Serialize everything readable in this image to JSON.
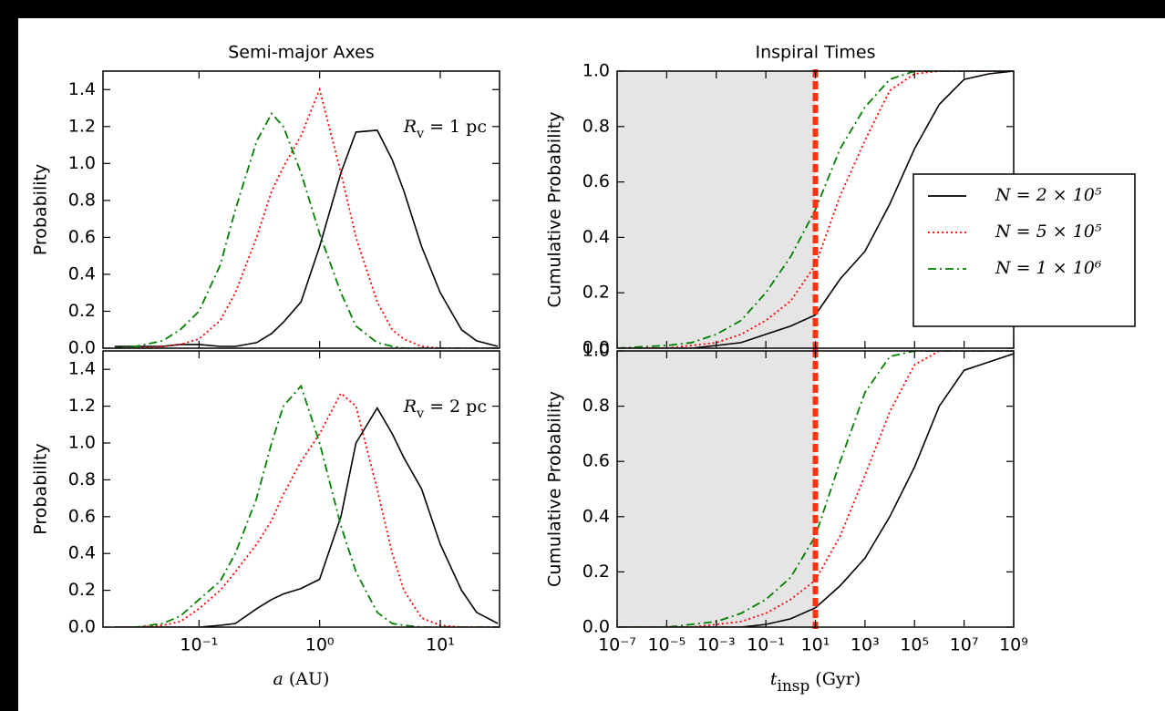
{
  "chart_data": [
    {
      "type": "line",
      "title": "Semi-major Axes",
      "ylabel": "Probability",
      "log_x": true,
      "annotation": {
        "symbol": "R",
        "subscript": "v",
        "text": "= 1 pc"
      },
      "x": [
        0.02,
        0.03,
        0.05,
        0.07,
        0.1,
        0.15,
        0.2,
        0.3,
        0.4,
        0.5,
        0.7,
        1,
        1.5,
        2,
        3,
        4,
        5,
        7,
        10,
        15,
        20,
        30
      ],
      "xlim": [
        0.016,
        31
      ],
      "xticks": [
        0.1,
        1,
        10
      ],
      "ylim": [
        0,
        1.5
      ],
      "yticks": [
        {
          "value": 0,
          "label": "0.0"
        },
        0.2,
        0.4,
        0.6,
        0.8,
        {
          "value": 1,
          "label": "1.0"
        },
        1.2,
        1.4
      ],
      "series": [
        {
          "color": "#000000",
          "dash": "solid",
          "values": [
            0.01,
            0.01,
            0.01,
            0.02,
            0.02,
            0.01,
            0.01,
            0.03,
            0.08,
            0.14,
            0.25,
            0.55,
            0.95,
            1.17,
            1.18,
            1.02,
            0.85,
            0.55,
            0.3,
            0.1,
            0.04,
            0.01
          ]
        },
        {
          "color": "#ff0000",
          "dash": "dotted",
          "values": [
            0,
            0,
            0.01,
            0.02,
            0.05,
            0.15,
            0.3,
            0.6,
            0.85,
            0.98,
            1.15,
            1.4,
            0.95,
            0.6,
            0.25,
            0.1,
            0.05,
            0.01,
            0,
            0,
            0,
            0
          ]
        },
        {
          "color": "#008000",
          "dash": "dashdot",
          "values": [
            0,
            0.01,
            0.04,
            0.1,
            0.2,
            0.45,
            0.75,
            1.12,
            1.27,
            1.2,
            0.95,
            0.62,
            0.3,
            0.12,
            0.03,
            0.01,
            0,
            0,
            0,
            0,
            0,
            0
          ]
        }
      ]
    },
    {
      "type": "line",
      "ylabel": "Probability",
      "xlabel": {
        "symbol": "a",
        "unit": "(AU)"
      },
      "log_x": true,
      "annotation": {
        "symbol": "R",
        "subscript": "v",
        "text": "= 2 pc"
      },
      "x": [
        0.02,
        0.03,
        0.05,
        0.07,
        0.1,
        0.15,
        0.2,
        0.3,
        0.4,
        0.5,
        0.7,
        1,
        1.5,
        2,
        3,
        4,
        5,
        7,
        10,
        15,
        20,
        30
      ],
      "xlim": [
        0.016,
        31
      ],
      "xticks": [
        {
          "value": 0.1,
          "label": "10⁻¹"
        },
        {
          "value": 1,
          "label": "10⁰"
        },
        {
          "value": 10,
          "label": "10¹"
        }
      ],
      "ylim": [
        0,
        1.5
      ],
      "yticks": [
        {
          "value": 0,
          "label": "0.0"
        },
        0.2,
        0.4,
        0.6,
        0.8,
        {
          "value": 1,
          "label": "1.0"
        },
        1.2,
        1.4
      ],
      "series": [
        {
          "color": "#000000",
          "dash": "solid",
          "values": [
            0,
            0,
            0,
            0,
            0,
            0.01,
            0.02,
            0.1,
            0.15,
            0.18,
            0.21,
            0.26,
            0.6,
            1.0,
            1.19,
            1.05,
            0.92,
            0.75,
            0.45,
            0.2,
            0.08,
            0.02
          ]
        },
        {
          "color": "#ff0000",
          "dash": "dotted",
          "values": [
            0,
            0,
            0.01,
            0.03,
            0.1,
            0.2,
            0.3,
            0.45,
            0.58,
            0.72,
            0.9,
            1.05,
            1.27,
            1.2,
            0.75,
            0.4,
            0.2,
            0.05,
            0.01,
            0,
            0,
            0
          ]
        },
        {
          "color": "#008000",
          "dash": "dashdot",
          "values": [
            0,
            0,
            0.02,
            0.06,
            0.15,
            0.25,
            0.4,
            0.7,
            1.0,
            1.2,
            1.31,
            1.0,
            0.55,
            0.3,
            0.08,
            0.02,
            0.01,
            0,
            0,
            0,
            0,
            0
          ]
        }
      ]
    },
    {
      "type": "line",
      "title": "Inspiral Times",
      "ylabel": "Cumulative Probability",
      "log_x": true,
      "legend": "right",
      "shade_x": [
        1e-07,
        10
      ],
      "shade_color": "#e5e5e5",
      "vline_x": 10,
      "vline_color": "#ff3311",
      "x": [
        1e-07,
        1e-05,
        0.0001,
        0.001,
        0.01,
        0.1,
        1,
        10,
        100,
        1000,
        10000.0,
        100000.0,
        1000000.0,
        10000000.0,
        100000000.0,
        1000000000.0
      ],
      "xlim": [
        1e-07,
        1000000000.0
      ],
      "xticks": [
        1e-07,
        1e-05,
        0.001,
        0.1,
        10,
        1000,
        100000,
        10000000,
        1000000000
      ],
      "ylim": [
        0,
        1
      ],
      "yticks": [
        {
          "value": 0,
          "label": "0.0"
        },
        0.2,
        0.4,
        0.6,
        0.8,
        {
          "value": 1,
          "label": "1.0"
        }
      ],
      "series": [
        {
          "name": "N = 2 × 10⁵",
          "color": "#000000",
          "dash": "solid",
          "values": [
            0,
            0,
            0,
            0.01,
            0.02,
            0.05,
            0.08,
            0.12,
            0.25,
            0.35,
            0.52,
            0.72,
            0.88,
            0.97,
            0.99,
            1
          ]
        },
        {
          "name": "N = 5 × 10⁵",
          "color": "#ff0000",
          "dash": "dotted",
          "values": [
            0,
            0,
            0.01,
            0.02,
            0.05,
            0.1,
            0.17,
            0.3,
            0.55,
            0.75,
            0.93,
            0.99,
            1,
            1,
            1,
            1
          ]
        },
        {
          "name": "N = 1 × 10⁶",
          "color": "#008000",
          "dash": "dashdot",
          "values": [
            0,
            0.01,
            0.02,
            0.05,
            0.1,
            0.2,
            0.33,
            0.5,
            0.72,
            0.87,
            0.97,
            1,
            1,
            1,
            1,
            1
          ]
        }
      ]
    },
    {
      "type": "line",
      "ylabel": "Cumulative Probability",
      "xlabel": {
        "symbol": "t",
        "subscript": "insp",
        "unit": "(Gyr)"
      },
      "log_x": true,
      "shade_x": [
        1e-07,
        10
      ],
      "shade_color": "#e5e5e5",
      "vline_x": 10,
      "vline_color": "#ff3311",
      "x": [
        1e-07,
        1e-05,
        0.0001,
        0.001,
        0.01,
        0.1,
        1,
        10,
        100,
        1000,
        10000.0,
        100000.0,
        1000000.0,
        10000000.0,
        100000000.0,
        1000000000.0
      ],
      "xlim": [
        1e-07,
        1000000000.0
      ],
      "xticks": [
        {
          "value": 1e-07,
          "label": "10⁻⁷"
        },
        {
          "value": 1e-05,
          "label": "10⁻⁵"
        },
        {
          "value": 0.001,
          "label": "10⁻³"
        },
        {
          "value": 0.1,
          "label": "10⁻¹"
        },
        {
          "value": 10,
          "label": "10¹"
        },
        {
          "value": 1000,
          "label": "10³"
        },
        {
          "value": 100000,
          "label": "10⁵"
        },
        {
          "value": 10000000,
          "label": "10⁷"
        },
        {
          "value": 1000000000,
          "label": "10⁹"
        }
      ],
      "ylim": [
        0,
        1
      ],
      "yticks": [
        {
          "value": 0,
          "label": "0.0"
        },
        0.2,
        0.4,
        0.6,
        0.8,
        {
          "value": 1,
          "label": "1.0"
        }
      ],
      "series": [
        {
          "color": "#000000",
          "dash": "solid",
          "values": [
            0,
            0,
            0,
            0,
            0,
            0.01,
            0.03,
            0.07,
            0.15,
            0.25,
            0.4,
            0.58,
            0.8,
            0.93,
            0.96,
            0.99
          ]
        },
        {
          "color": "#ff0000",
          "dash": "dotted",
          "values": [
            0,
            0,
            0,
            0.01,
            0.02,
            0.05,
            0.1,
            0.17,
            0.33,
            0.55,
            0.78,
            0.95,
            1,
            1,
            1,
            1
          ]
        },
        {
          "color": "#008000",
          "dash": "dashdot",
          "values": [
            0,
            0,
            0.01,
            0.02,
            0.05,
            0.1,
            0.18,
            0.33,
            0.6,
            0.85,
            0.98,
            1,
            1,
            1,
            1,
            1
          ]
        }
      ]
    }
  ]
}
